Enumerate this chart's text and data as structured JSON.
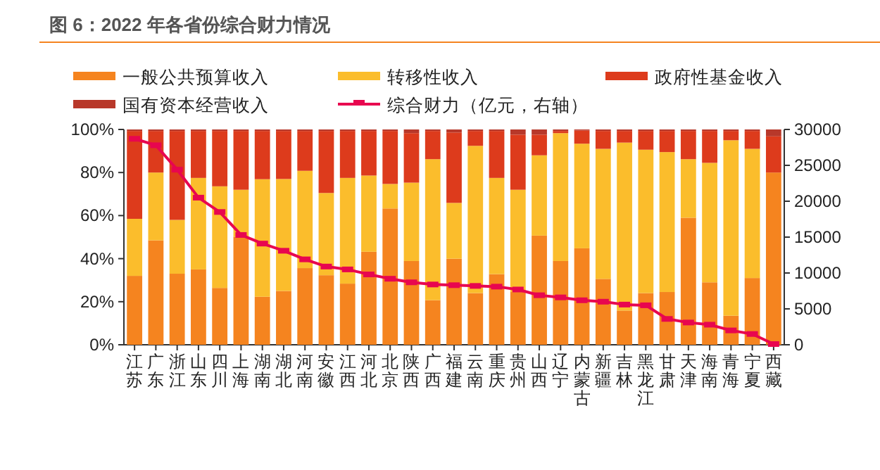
{
  "chart_data": {
    "type": "bar",
    "title": "图 6：2022 年各省份综合财力情况",
    "categories": [
      "江苏",
      "广东",
      "浙江",
      "山东",
      "四川",
      "上海",
      "湖南",
      "湖北",
      "河南",
      "安徽",
      "江西",
      "河北",
      "北京",
      "陕西",
      "广西",
      "福建",
      "云南",
      "重庆",
      "贵州",
      "山西",
      "辽宁",
      "内蒙古",
      "新疆",
      "吉林",
      "黑龙江",
      "甘肃",
      "天津",
      "海南",
      "青海",
      "宁夏",
      "西藏"
    ],
    "stacked": true,
    "series": [
      {
        "name": "一般公共预算收入",
        "color": "#f5841f",
        "values": [
          32,
          48.5,
          33,
          35,
          26.4,
          50.2,
          22.3,
          25,
          35.6,
          32.3,
          28.4,
          43.2,
          63.3,
          38.9,
          20.7,
          40,
          24,
          32.8,
          24.5,
          50.7,
          38.9,
          44.8,
          30.6,
          15.9,
          24,
          24.5,
          59,
          29,
          13.5,
          31,
          80
        ]
      },
      {
        "name": "转移性收入",
        "color": "#fbbd2c",
        "values": [
          26.5,
          31.5,
          25,
          42.5,
          47.2,
          21.8,
          54.6,
          52,
          45.2,
          38.2,
          49.1,
          35.4,
          11.4,
          36.4,
          65.5,
          25.9,
          68.4,
          44.7,
          47.5,
          37.3,
          59.4,
          48.6,
          60.4,
          78,
          66.6,
          65,
          27.2,
          55.5,
          81.5,
          60,
          0
        ]
      },
      {
        "name": "政府性基金收入",
        "color": "#dd3b1c",
        "values": [
          40.8,
          19.3,
          41.3,
          21.8,
          25.7,
          27.3,
          22.4,
          22.3,
          18.5,
          28.8,
          21.8,
          20.7,
          24.6,
          23,
          13.1,
          32.7,
          6.9,
          21.8,
          25.6,
          9.6,
          1,
          6.1,
          8.3,
          5.4,
          8.7,
          9.8,
          13.1,
          14.8,
          4.3,
          8.3,
          16.8
        ]
      },
      {
        "name": "国有资本经营收入",
        "color": "#b8382a",
        "values": [
          0.7,
          0.7,
          0.7,
          0.7,
          0.7,
          0.7,
          0.7,
          0.7,
          0.7,
          0.7,
          0.7,
          0.7,
          0.7,
          1.7,
          0.7,
          1.4,
          0.7,
          0.7,
          2.4,
          2.4,
          0.7,
          0.5,
          0.7,
          0.7,
          0.7,
          0.7,
          0.7,
          0.7,
          0.7,
          0.7,
          3.2
        ]
      },
      {
        "name": "综合财力（亿元，右轴）",
        "type": "line",
        "axis": "y2",
        "color": "#e8064f",
        "values": [
          28700,
          27800,
          24400,
          20500,
          18500,
          15300,
          14100,
          13100,
          11900,
          10900,
          10500,
          9800,
          9200,
          8700,
          8400,
          8300,
          8200,
          8100,
          7700,
          6900,
          6600,
          6200,
          6000,
          5600,
          5500,
          3600,
          3100,
          2800,
          2000,
          1500,
          100
        ]
      }
    ],
    "ylim": [
      0,
      100
    ],
    "yticks": [
      {
        "value": 0,
        "label": "0%"
      },
      {
        "value": 20,
        "label": "20%"
      },
      {
        "value": 40,
        "label": "40%"
      },
      {
        "value": 60,
        "label": "60%"
      },
      {
        "value": 80,
        "label": "80%"
      },
      {
        "value": 100,
        "label": "100%"
      }
    ],
    "y2lim": [
      0,
      30000
    ],
    "y2ticks": [
      0,
      5000,
      10000,
      15000,
      20000,
      25000,
      30000
    ],
    "legend": "top",
    "marker": "square"
  }
}
